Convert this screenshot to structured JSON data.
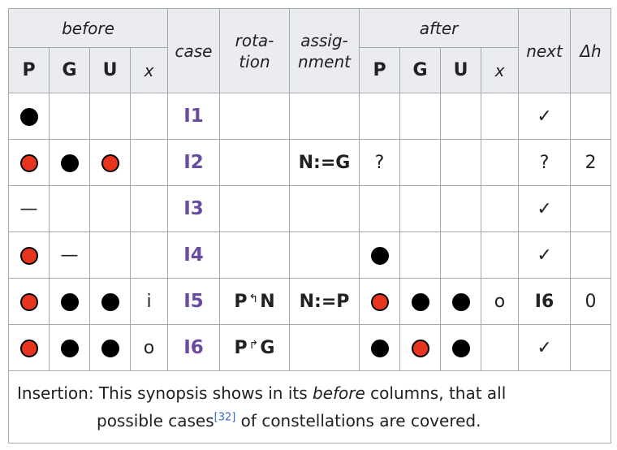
{
  "headers": {
    "before": "before",
    "case": "case",
    "rotation_l1": "rota-",
    "rotation_l2": "tion",
    "assignment_l1": "assig-",
    "assignment_l2": "nment",
    "after": "after",
    "next": "next",
    "dh": "Δh",
    "before_cols": [
      "P",
      "G",
      "U",
      "x"
    ],
    "after_cols": [
      "P",
      "G",
      "U",
      "x"
    ]
  },
  "rows": [
    {
      "before": [
        "black",
        "",
        "",
        ""
      ],
      "case": "I1",
      "rot": [
        "",
        ""
      ],
      "assign": "",
      "after": [
        "",
        "",
        "",
        ""
      ],
      "next": "✓",
      "dh": ""
    },
    {
      "before": [
        "red",
        "black",
        "red",
        ""
      ],
      "case": "I2",
      "rot": [
        "",
        ""
      ],
      "assign": "N:=G",
      "after": [
        "?",
        "",
        "",
        ""
      ],
      "next": "?",
      "dh": "2"
    },
    {
      "before": [
        "—",
        "",
        "",
        ""
      ],
      "case": "I3",
      "rot": [
        "",
        ""
      ],
      "assign": "",
      "after": [
        "",
        "",
        "",
        ""
      ],
      "next": "✓",
      "dh": ""
    },
    {
      "before": [
        "red",
        "—",
        "",
        ""
      ],
      "case": "I4",
      "rot": [
        "",
        ""
      ],
      "assign": "",
      "after": [
        "black",
        "",
        "",
        ""
      ],
      "next": "✓",
      "dh": ""
    },
    {
      "before": [
        "red",
        "black",
        "black",
        "i"
      ],
      "case": "I5",
      "rot": [
        "P",
        "N"
      ],
      "assign": "N:=P",
      "after": [
        "red",
        "black",
        "black",
        "o"
      ],
      "next": "I6",
      "dh": "0"
    },
    {
      "before": [
        "red",
        "black",
        "black",
        "o"
      ],
      "case": "I6",
      "rot": [
        "P",
        "G"
      ],
      "assign": "",
      "after": [
        "black",
        "red",
        "black",
        ""
      ],
      "next": "✓",
      "dh": ""
    }
  ],
  "rot_arrows": [
    "",
    "",
    "",
    "",
    "↰",
    "↱"
  ],
  "caption": {
    "part1": "Insertion: This synopsis shows in its ",
    "part2": "before",
    "part3": " columns, that all",
    "part4": "possible cases",
    "ref": "[32]",
    "part5": " of constellations are covered."
  }
}
